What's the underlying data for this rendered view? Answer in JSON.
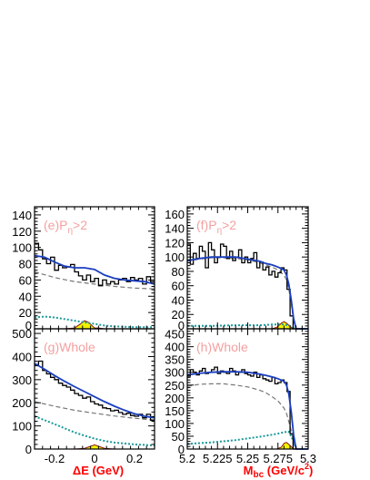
{
  "x_titles": {
    "left": "ΔE (GeV)",
    "right_main": "M",
    "right_sub": "bc",
    "right_rest": " (GeV/c",
    "right_sup": "2",
    "right_end": ")"
  },
  "colors": {
    "data": "#000000",
    "fit": "#1a3fbf",
    "background_dashed": "#777777",
    "bb_dotted": "#1a9a9a",
    "signal_fill": "#f2f200",
    "signal_line": "#8a1a1a",
    "label": "#f4a0a0",
    "axis_title": "#ff0000"
  },
  "chart_data": [
    {
      "panel": "e",
      "label": "(e)Pη>2",
      "label_main": "(e)P",
      "label_sub": "η",
      "label_rest": ">2",
      "type": "line",
      "variable": "deltaE",
      "xlim": [
        -0.3,
        0.3
      ],
      "ylim": [
        0,
        150
      ],
      "xticks": [
        -0.2,
        0,
        0.2
      ],
      "xtick_labels": [],
      "yticks": [
        0,
        20,
        40,
        60,
        80,
        100,
        120,
        140
      ],
      "ytick_labels": [
        "0",
        "20",
        "40",
        "60",
        "80",
        "100",
        "120",
        "140"
      ],
      "histogram": {
        "bin_width": 0.02,
        "x_start": -0.3,
        "values": [
          105,
          97,
          86,
          80,
          88,
          72,
          78,
          75,
          76,
          79,
          70,
          65,
          60,
          66,
          58,
          62,
          53,
          60,
          55,
          58,
          55,
          60,
          62,
          58,
          63,
          60,
          62,
          55,
          64,
          58
        ]
      },
      "series": [
        {
          "role": "total_fit",
          "x": [
            -0.3,
            -0.25,
            -0.2,
            -0.15,
            -0.1,
            -0.05,
            0,
            0.05,
            0.1,
            0.15,
            0.2,
            0.25,
            0.3
          ],
          "y": [
            90,
            88,
            82,
            77,
            75,
            75,
            73,
            66,
            62,
            60,
            59,
            58,
            55
          ]
        },
        {
          "role": "continuum",
          "x": [
            -0.3,
            -0.2,
            -0.1,
            0,
            0.1,
            0.2,
            0.3
          ],
          "y": [
            70,
            63,
            58,
            55,
            52,
            50,
            49
          ]
        },
        {
          "role": "bb_background",
          "x": [
            -0.3,
            -0.25,
            -0.2,
            -0.15,
            -0.1,
            -0.05,
            0,
            0.05,
            0.1,
            0.2,
            0.3
          ],
          "y": [
            14,
            15,
            14,
            12,
            10,
            8,
            6,
            4,
            3,
            2,
            2
          ]
        },
        {
          "role": "signal",
          "x": [
            -0.3,
            -0.15,
            -0.1,
            -0.07,
            -0.05,
            -0.03,
            0,
            0.02,
            0.05,
            0.1,
            0.3
          ],
          "y": [
            0,
            0,
            1,
            6,
            10,
            8,
            1,
            1,
            0,
            0,
            0
          ]
        }
      ]
    },
    {
      "panel": "f",
      "label": "(f)Pη>2",
      "label_main": "(f)P",
      "label_sub": "η",
      "label_rest": ">2",
      "type": "line",
      "variable": "Mbc",
      "xlim": [
        5.2,
        5.3
      ],
      "ylim": [
        0,
        170
      ],
      "xticks": [
        5.2,
        5.225,
        5.25,
        5.275,
        5.3
      ],
      "xtick_labels": [],
      "yticks": [
        0,
        20,
        40,
        60,
        80,
        100,
        120,
        140,
        160
      ],
      "ytick_labels": [
        "0",
        "20",
        "40",
        "60",
        "80",
        "100",
        "120",
        "140",
        "160"
      ],
      "histogram": {
        "bin_width": 0.0025,
        "x_start": 5.2,
        "values": [
          118,
          90,
          105,
          98,
          115,
          108,
          85,
          120,
          110,
          92,
          100,
          118,
          115,
          98,
          108,
          95,
          100,
          110,
          92,
          100,
          92,
          98,
          106,
          85,
          93,
          82,
          86,
          75,
          80,
          72,
          78,
          85,
          82,
          55,
          18,
          0,
          0,
          0,
          0,
          0
        ]
      },
      "series": [
        {
          "role": "total_fit",
          "x": [
            5.2,
            5.21,
            5.22,
            5.23,
            5.24,
            5.25,
            5.26,
            5.265,
            5.27,
            5.275,
            5.28,
            5.282,
            5.284,
            5.286,
            5.288,
            5.29,
            5.3
          ],
          "y": [
            95,
            98,
            100,
            100,
            100,
            97,
            94,
            91,
            89,
            86,
            82,
            75,
            62,
            40,
            14,
            0,
            0
          ]
        },
        {
          "role": "continuum",
          "x": [
            5.2,
            5.21,
            5.22,
            5.23,
            5.24,
            5.25,
            5.26,
            5.265,
            5.27,
            5.275,
            5.28,
            5.282,
            5.284,
            5.286,
            5.288,
            5.29
          ],
          "y": [
            94,
            97,
            99,
            99,
            98,
            96,
            92,
            89,
            86,
            82,
            75,
            68,
            55,
            35,
            12,
            0
          ]
        },
        {
          "role": "bb_background",
          "x": [
            5.2,
            5.22,
            5.24,
            5.26,
            5.27,
            5.28,
            5.285,
            5.29
          ],
          "y": [
            4,
            4,
            5,
            5,
            6,
            6,
            4,
            0
          ]
        },
        {
          "role": "signal",
          "x": [
            5.2,
            5.27,
            5.274,
            5.278,
            5.28,
            5.282,
            5.285,
            5.288,
            5.3
          ],
          "y": [
            0,
            0,
            2,
            8,
            10,
            8,
            3,
            0,
            0
          ]
        }
      ]
    },
    {
      "panel": "g",
      "label": "(g)Whole",
      "type": "line",
      "variable": "deltaE",
      "xlim": [
        -0.3,
        0.3
      ],
      "ylim": [
        0,
        520
      ],
      "xticks": [
        -0.2,
        0,
        0.2
      ],
      "xtick_labels": [
        "-0.2",
        "0",
        "0.2"
      ],
      "yticks": [
        0,
        100,
        200,
        300,
        400,
        500
      ],
      "ytick_labels": [
        "0",
        "100",
        "200",
        "300",
        "400",
        "500"
      ],
      "histogram": {
        "bin_width": 0.02,
        "x_start": -0.3,
        "values": [
          365,
          380,
          340,
          325,
          310,
          300,
          285,
          275,
          268,
          255,
          240,
          232,
          220,
          225,
          205,
          195,
          190,
          178,
          175,
          165,
          168,
          158,
          150,
          155,
          145,
          142,
          150,
          135,
          150,
          125
        ]
      },
      "series": [
        {
          "role": "total_fit",
          "x": [
            -0.3,
            -0.25,
            -0.2,
            -0.15,
            -0.1,
            -0.05,
            0,
            0.05,
            0.1,
            0.15,
            0.2,
            0.25,
            0.3
          ],
          "y": [
            370,
            345,
            318,
            293,
            270,
            248,
            226,
            205,
            185,
            168,
            153,
            142,
            135
          ]
        },
        {
          "role": "continuum",
          "x": [
            -0.3,
            -0.2,
            -0.1,
            0,
            0.1,
            0.2,
            0.3
          ],
          "y": [
            205,
            185,
            168,
            155,
            143,
            133,
            125
          ]
        },
        {
          "role": "bb_background",
          "x": [
            -0.3,
            -0.25,
            -0.2,
            -0.15,
            -0.1,
            -0.05,
            0,
            0.05,
            0.1,
            0.2,
            0.3
          ],
          "y": [
            142,
            125,
            108,
            90,
            72,
            58,
            45,
            35,
            28,
            20,
            15
          ]
        },
        {
          "role": "signal",
          "x": [
            -0.3,
            -0.1,
            -0.05,
            -0.02,
            0,
            0.02,
            0.05,
            0.1,
            0.3
          ],
          "y": [
            0,
            0,
            3,
            12,
            18,
            12,
            3,
            0,
            0
          ]
        }
      ]
    },
    {
      "panel": "h",
      "label": "(h)Whole",
      "type": "line",
      "variable": "Mbc",
      "xlim": [
        5.2,
        5.3
      ],
      "ylim": [
        0,
        470
      ],
      "xticks": [
        5.2,
        5.225,
        5.25,
        5.275,
        5.3
      ],
      "xtick_labels": [
        "5.2",
        "5.225",
        "5.25",
        "5.275",
        "5.3"
      ],
      "yticks": [
        0,
        50,
        100,
        150,
        200,
        250,
        300,
        350,
        400,
        450
      ],
      "ytick_labels": [
        "0",
        "50",
        "100",
        "150",
        "200",
        "250",
        "300",
        "350",
        "400",
        "450"
      ],
      "histogram": {
        "bin_width": 0.0025,
        "x_start": 5.2,
        "values": [
          285,
          310,
          300,
          290,
          305,
          315,
          295,
          300,
          310,
          320,
          295,
          305,
          300,
          295,
          315,
          305,
          290,
          300,
          310,
          295,
          290,
          285,
          300,
          280,
          290,
          275,
          270,
          265,
          280,
          255,
          260,
          270,
          260,
          225,
          60,
          0,
          0,
          0,
          0,
          0
        ]
      },
      "series": [
        {
          "role": "total_fit",
          "x": [
            5.2,
            5.21,
            5.22,
            5.23,
            5.24,
            5.25,
            5.26,
            5.265,
            5.27,
            5.275,
            5.28,
            5.282,
            5.284,
            5.286,
            5.288,
            5.29,
            5.3
          ],
          "y": [
            290,
            296,
            300,
            302,
            302,
            300,
            293,
            288,
            282,
            275,
            265,
            250,
            215,
            145,
            55,
            0,
            0
          ]
        },
        {
          "role": "continuum",
          "x": [
            5.2,
            5.21,
            5.22,
            5.23,
            5.24,
            5.25,
            5.26,
            5.265,
            5.27,
            5.275,
            5.28,
            5.282,
            5.284,
            5.286,
            5.288,
            5.29
          ],
          "y": [
            245,
            253,
            255,
            255,
            250,
            243,
            230,
            220,
            205,
            188,
            160,
            140,
            108,
            70,
            25,
            0
          ]
        },
        {
          "role": "bb_background",
          "x": [
            5.2,
            5.22,
            5.24,
            5.26,
            5.27,
            5.275,
            5.28,
            5.284,
            5.288,
            5.29
          ],
          "y": [
            20,
            26,
            35,
            48,
            56,
            60,
            66,
            68,
            30,
            0
          ]
        },
        {
          "role": "signal",
          "x": [
            5.2,
            5.274,
            5.278,
            5.28,
            5.282,
            5.285,
            5.288,
            5.3
          ],
          "y": [
            0,
            0,
            8,
            22,
            26,
            14,
            0,
            0
          ]
        }
      ]
    }
  ]
}
